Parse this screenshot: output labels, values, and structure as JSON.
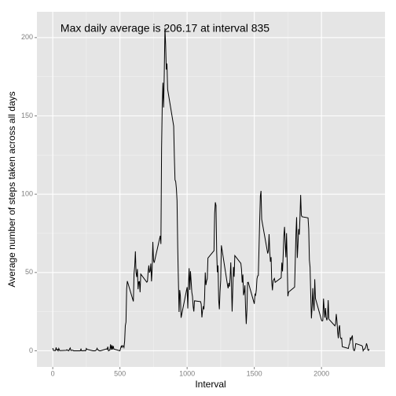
{
  "chart_data": {
    "type": "line",
    "annotation": "Max daily average is 206.17 at interval 835",
    "x_label": "Interval",
    "y_label": "Average number of steps taken across all days",
    "color": "#000000",
    "grid": true,
    "xlim": [
      -117.75,
      2472.75
    ],
    "ylim": [
      -10.31,
      216.48
    ],
    "xticks": [
      0,
      500,
      1000,
      1500,
      2000
    ],
    "yticks": [
      0,
      50,
      100,
      150,
      200
    ],
    "x": [
      0,
      5,
      10,
      15,
      20,
      25,
      30,
      35,
      40,
      45,
      50,
      55,
      100,
      105,
      110,
      115,
      120,
      125,
      130,
      135,
      140,
      145,
      150,
      155,
      200,
      205,
      210,
      215,
      220,
      225,
      230,
      235,
      240,
      245,
      250,
      255,
      300,
      305,
      310,
      315,
      320,
      325,
      330,
      335,
      340,
      345,
      350,
      355,
      400,
      405,
      410,
      415,
      420,
      425,
      430,
      435,
      440,
      445,
      450,
      455,
      500,
      505,
      510,
      515,
      520,
      525,
      530,
      535,
      540,
      545,
      550,
      555,
      600,
      605,
      610,
      615,
      620,
      625,
      630,
      635,
      640,
      645,
      650,
      655,
      700,
      705,
      710,
      715,
      720,
      725,
      730,
      735,
      740,
      745,
      750,
      755,
      800,
      805,
      810,
      815,
      820,
      825,
      830,
      835,
      840,
      845,
      850,
      855,
      900,
      905,
      910,
      915,
      920,
      925,
      930,
      935,
      940,
      945,
      950,
      955,
      1000,
      1005,
      1010,
      1015,
      1020,
      1025,
      1030,
      1035,
      1040,
      1045,
      1050,
      1055,
      1100,
      1105,
      1110,
      1115,
      1120,
      1125,
      1130,
      1135,
      1140,
      1145,
      1150,
      1155,
      1200,
      1205,
      1210,
      1215,
      1220,
      1225,
      1230,
      1235,
      1240,
      1245,
      1250,
      1255,
      1300,
      1305,
      1310,
      1315,
      1320,
      1325,
      1330,
      1335,
      1340,
      1345,
      1350,
      1355,
      1400,
      1405,
      1410,
      1415,
      1420,
      1425,
      1430,
      1435,
      1440,
      1445,
      1450,
      1455,
      1500,
      1505,
      1510,
      1515,
      1520,
      1525,
      1530,
      1535,
      1540,
      1545,
      1550,
      1555,
      1600,
      1605,
      1610,
      1615,
      1620,
      1625,
      1630,
      1635,
      1640,
      1645,
      1650,
      1655,
      1700,
      1705,
      1710,
      1715,
      1720,
      1725,
      1730,
      1735,
      1740,
      1745,
      1750,
      1755,
      1800,
      1805,
      1810,
      1815,
      1820,
      1825,
      1830,
      1835,
      1840,
      1845,
      1850,
      1855,
      1900,
      1905,
      1910,
      1915,
      1920,
      1925,
      1930,
      1935,
      1940,
      1945,
      1950,
      1955,
      2000,
      2005,
      2010,
      2015,
      2020,
      2025,
      2030,
      2035,
      2040,
      2045,
      2050,
      2055,
      2100,
      2105,
      2110,
      2115,
      2120,
      2125,
      2130,
      2135,
      2140,
      2145,
      2150,
      2155,
      2200,
      2205,
      2210,
      2215,
      2220,
      2225,
      2230,
      2235,
      2240,
      2245,
      2250,
      2255,
      2300,
      2305,
      2310,
      2315,
      2320,
      2325,
      2330,
      2335,
      2340,
      2345,
      2350,
      2355
    ],
    "values": [
      1.7,
      0.3,
      0.1,
      0.2,
      0.1,
      2.1,
      0.5,
      0.9,
      0,
      1.5,
      0.3,
      0.1,
      0.3,
      0.7,
      0.2,
      0.3,
      0,
      1.1,
      1.8,
      0.2,
      0.2,
      0.4,
      0.3,
      0,
      0,
      0,
      1.1,
      0,
      0,
      0.1,
      0,
      0.2,
      0,
      0,
      1.5,
      0.9,
      0,
      0,
      0,
      0,
      0.2,
      0.6,
      1.6,
      0.6,
      0.5,
      0.1,
      0,
      0,
      1.2,
      0.9,
      2.6,
      0,
      0.3,
      0.4,
      4.1,
      0.7,
      3.5,
      0.8,
      3.1,
      1.1,
      0,
      1.6,
      3,
      2.2,
      3.3,
      3,
      2.1,
      6.1,
      16,
      18.3,
      39.5,
      44.5,
      31.5,
      49.3,
      53.8,
      63.5,
      50,
      47.1,
      52.2,
      39.3,
      44,
      44.2,
      37.4,
      49,
      43.8,
      44.4,
      50.5,
      54.5,
      49.9,
      51,
      55.7,
      44.3,
      52.3,
      69.5,
      57.8,
      56.2,
      73.4,
      68.2,
      129.4,
      157.5,
      171.2,
      155.4,
      177.3,
      206.17,
      195.9,
      179.6,
      183.4,
      167,
      143.5,
      124,
      109.1,
      108.1,
      103.7,
      95.9,
      66.2,
      45.2,
      24.8,
      38.8,
      35,
      21.1,
      40.6,
      27,
      42.4,
      52.7,
      38.9,
      50.8,
      44.3,
      37.4,
      34.7,
      28.3,
      25.1,
      31.9,
      31.4,
      29.7,
      21.3,
      25.5,
      28.4,
      26.5,
      33.4,
      50,
      42,
      44.6,
      46,
      59.2,
      63.9,
      87.7,
      94.8,
      92.8,
      63.4,
      50.2,
      54.5,
      32.4,
      26.5,
      37.7,
      45.1,
      67.3,
      42.3,
      39.9,
      43.3,
      41,
      46.2,
      56.4,
      42.8,
      25.1,
      39.9,
      53.5,
      47.3,
      60.8,
      55.8,
      51.9,
      43.6,
      48.7,
      35.5,
      37.5,
      41.8,
      27.5,
      17.1,
      26.1,
      43.6,
      43.8,
      30,
      36.1,
      35.5,
      38.8,
      46,
      47.8,
      48.1,
      65.3,
      82.9,
      98.7,
      102.1,
      84,
      62.1,
      64.1,
      74.5,
      63.2,
      56.9,
      59.8,
      43.9,
      38.6,
      44.7,
      45.5,
      46.2,
      43.7,
      46.6,
      56.3,
      50.7,
      61.2,
      73.4,
      79.1,
      68.9,
      59.7,
      75.1,
      56.5,
      34.8,
      37.5,
      40.7,
      58,
      74.7,
      85.3,
      59.3,
      67.8,
      77.7,
      74.2,
      85.3,
      99.5,
      86.6,
      85.6,
      84.9,
      77.8,
      58,
      53.4,
      36.3,
      20.7,
      27.4,
      40,
      30.2,
      25.5,
      45.7,
      33.5,
      19.6,
      19,
      19.3,
      33.3,
      26.8,
      21.2,
      27.3,
      21.3,
      19.5,
      21.3,
      32.3,
      20.2,
      15.9,
      17.2,
      23.5,
      19.2,
      12.5,
      8,
      14.7,
      16.3,
      8.7,
      7.8,
      8.1,
      2.6,
      1.5,
      3.7,
      4.8,
      8.5,
      7.1,
      8.7,
      9.8,
      2.2,
      0.3,
      0.1,
      1.6,
      4.6,
      3.3,
      2.8,
      0,
      0.8,
      1,
      1.6,
      2.6,
      4.7,
      3.3,
      0.6,
      0.2,
      1.1
    ]
  }
}
